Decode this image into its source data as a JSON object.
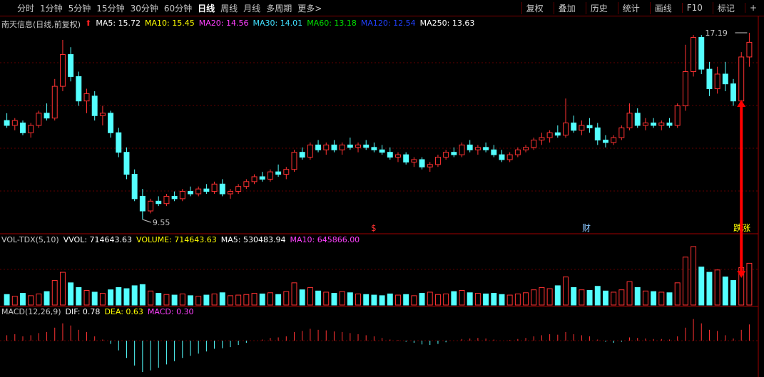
{
  "toolbar": {
    "periods": [
      "分时",
      "1分钟",
      "5分钟",
      "15分钟",
      "30分钟",
      "60分钟",
      "日线",
      "周线",
      "月线",
      "多周期",
      "更多>"
    ],
    "tools": [
      "复权",
      "叠加",
      "历史",
      "统计",
      "画线",
      "F10",
      "标记",
      "+"
    ]
  },
  "price_panel": {
    "title": "南天信息(日线,前复权)",
    "ma_labels": [
      "MA5: 15.72",
      "MA10: 15.45",
      "MA20: 14.56",
      "MA30: 14.01",
      "MA60: 13.18",
      "MA120: 12.54",
      "MA250: 13.63"
    ],
    "high_label": "17.19",
    "low_label": "9.55",
    "markers": [
      "$",
      "财",
      "跌涨"
    ],
    "ohlc": [
      [
        13.6,
        13.9,
        13.3,
        13.4
      ],
      [
        13.4,
        13.7,
        13.2,
        13.6
      ],
      [
        13.5,
        13.6,
        13.0,
        13.1
      ],
      [
        13.1,
        13.5,
        12.9,
        13.4
      ],
      [
        13.4,
        14.0,
        13.3,
        13.9
      ],
      [
        13.9,
        14.3,
        13.6,
        13.7
      ],
      [
        13.7,
        15.3,
        13.6,
        15.0
      ],
      [
        15.0,
        16.9,
        14.8,
        16.3
      ],
      [
        16.3,
        16.6,
        15.2,
        15.4
      ],
      [
        15.4,
        15.6,
        14.2,
        14.4
      ],
      [
        14.4,
        14.9,
        13.9,
        14.7
      ],
      [
        14.6,
        14.8,
        13.6,
        13.8
      ],
      [
        13.8,
        14.2,
        13.4,
        13.9
      ],
      [
        13.9,
        14.0,
        12.9,
        13.1
      ],
      [
        13.1,
        13.3,
        12.1,
        12.3
      ],
      [
        12.3,
        12.5,
        11.2,
        11.4
      ],
      [
        11.4,
        11.6,
        10.3,
        10.4
      ],
      [
        10.5,
        10.8,
        9.55,
        9.9
      ],
      [
        9.9,
        10.4,
        9.8,
        10.3
      ],
      [
        10.3,
        10.5,
        10.1,
        10.2
      ],
      [
        10.2,
        10.6,
        10.1,
        10.5
      ],
      [
        10.5,
        10.7,
        10.3,
        10.4
      ],
      [
        10.4,
        10.8,
        10.3,
        10.7
      ],
      [
        10.7,
        10.9,
        10.5,
        10.6
      ],
      [
        10.6,
        10.9,
        10.5,
        10.8
      ],
      [
        10.8,
        11.0,
        10.6,
        10.7
      ],
      [
        10.7,
        11.1,
        10.6,
        11.0
      ],
      [
        11.0,
        11.2,
        10.5,
        10.6
      ],
      [
        10.6,
        10.8,
        10.4,
        10.7
      ],
      [
        10.7,
        11.0,
        10.6,
        10.9
      ],
      [
        10.9,
        11.2,
        10.8,
        11.1
      ],
      [
        11.1,
        11.4,
        11.0,
        11.3
      ],
      [
        11.3,
        11.5,
        11.1,
        11.2
      ],
      [
        11.2,
        11.6,
        11.1,
        11.5
      ],
      [
        11.5,
        11.8,
        11.3,
        11.4
      ],
      [
        11.4,
        11.7,
        11.2,
        11.6
      ],
      [
        11.6,
        12.4,
        11.5,
        12.3
      ],
      [
        12.3,
        12.5,
        12.0,
        12.1
      ],
      [
        12.1,
        12.7,
        12.0,
        12.6
      ],
      [
        12.6,
        12.8,
        12.3,
        12.4
      ],
      [
        12.4,
        12.7,
        12.2,
        12.6
      ],
      [
        12.6,
        12.8,
        12.3,
        12.4
      ],
      [
        12.4,
        12.7,
        12.2,
        12.6
      ],
      [
        12.6,
        12.9,
        12.4,
        12.5
      ],
      [
        12.5,
        12.7,
        12.3,
        12.6
      ],
      [
        12.6,
        12.8,
        12.4,
        12.5
      ],
      [
        12.5,
        12.7,
        12.3,
        12.4
      ],
      [
        12.4,
        12.6,
        12.2,
        12.3
      ],
      [
        12.3,
        12.5,
        12.0,
        12.1
      ],
      [
        12.1,
        12.3,
        11.9,
        12.2
      ],
      [
        12.2,
        12.3,
        11.8,
        11.9
      ],
      [
        11.9,
        12.1,
        11.7,
        12.0
      ],
      [
        12.0,
        12.1,
        11.6,
        11.7
      ],
      [
        11.7,
        11.9,
        11.5,
        11.8
      ],
      [
        11.8,
        12.2,
        11.7,
        12.1
      ],
      [
        12.1,
        12.4,
        12.0,
        12.3
      ],
      [
        12.3,
        12.5,
        12.1,
        12.2
      ],
      [
        12.2,
        12.7,
        12.1,
        12.6
      ],
      [
        12.6,
        12.8,
        12.3,
        12.4
      ],
      [
        12.4,
        12.6,
        12.2,
        12.5
      ],
      [
        12.5,
        12.7,
        12.3,
        12.4
      ],
      [
        12.4,
        12.6,
        12.1,
        12.2
      ],
      [
        12.2,
        12.4,
        11.9,
        12.0
      ],
      [
        12.0,
        12.3,
        11.9,
        12.2
      ],
      [
        12.2,
        12.5,
        12.1,
        12.4
      ],
      [
        12.4,
        12.6,
        12.3,
        12.5
      ],
      [
        12.5,
        12.9,
        12.4,
        12.8
      ],
      [
        12.8,
        13.1,
        12.6,
        12.9
      ],
      [
        12.9,
        13.2,
        12.7,
        13.1
      ],
      [
        13.1,
        13.4,
        12.9,
        13.0
      ],
      [
        13.0,
        14.5,
        12.9,
        13.5
      ],
      [
        13.5,
        13.8,
        13.1,
        13.2
      ],
      [
        13.2,
        13.6,
        13.0,
        13.4
      ],
      [
        13.4,
        13.7,
        13.1,
        13.3
      ],
      [
        13.3,
        13.5,
        12.6,
        12.8
      ],
      [
        12.8,
        13.0,
        12.5,
        12.7
      ],
      [
        12.7,
        13.0,
        12.6,
        12.9
      ],
      [
        12.9,
        13.4,
        12.8,
        13.3
      ],
      [
        13.3,
        14.3,
        13.2,
        13.9
      ],
      [
        13.9,
        14.1,
        13.3,
        13.4
      ],
      [
        13.4,
        13.7,
        13.2,
        13.5
      ],
      [
        13.5,
        13.7,
        13.3,
        13.4
      ],
      [
        13.4,
        13.6,
        13.2,
        13.5
      ],
      [
        13.5,
        13.7,
        13.3,
        13.4
      ],
      [
        13.4,
        14.3,
        13.3,
        14.2
      ],
      [
        14.2,
        16.7,
        14.0,
        15.6
      ],
      [
        15.6,
        17.1,
        15.4,
        17.0
      ],
      [
        17.0,
        17.1,
        15.5,
        15.7
      ],
      [
        15.7,
        16.0,
        14.6,
        14.9
      ],
      [
        14.9,
        15.8,
        14.7,
        15.5
      ],
      [
        15.5,
        16.0,
        14.8,
        15.1
      ],
      [
        15.1,
        15.3,
        14.2,
        14.4
      ],
      [
        14.4,
        16.4,
        14.3,
        16.2
      ],
      [
        16.2,
        17.19,
        15.8,
        16.8
      ]
    ]
  },
  "volume_panel": {
    "title": "VOL-TDX(5,10)",
    "labels": [
      "VVOL: 714643.63",
      "VOLUME: 714643.63",
      "MA5: 530483.94",
      "MA10: 645866.00"
    ],
    "values": [
      180000,
      150000,
      200000,
      160000,
      190000,
      230000,
      420000,
      560000,
      380000,
      300000,
      250000,
      220000,
      200000,
      260000,
      300000,
      280000,
      330000,
      350000,
      240000,
      200000,
      180000,
      170000,
      190000,
      160000,
      150000,
      170000,
      190000,
      210000,
      160000,
      170000,
      180000,
      200000,
      190000,
      210000,
      180000,
      230000,
      380000,
      260000,
      300000,
      240000,
      220000,
      200000,
      230000,
      210000,
      190000,
      180000,
      170000,
      160000,
      190000,
      170000,
      180000,
      160000,
      200000,
      220000,
      180000,
      190000,
      230000,
      250000,
      210000,
      200000,
      190000,
      200000,
      180000,
      170000,
      190000,
      210000,
      260000,
      300000,
      280000,
      330000,
      480000,
      300000,
      260000,
      250000,
      320000,
      240000,
      220000,
      260000,
      400000,
      300000,
      240000,
      230000,
      220000,
      210000,
      380000,
      820000,
      1000000,
      650000,
      560000,
      600000,
      480000,
      420000,
      640000,
      714643.63
    ]
  },
  "macd_panel": {
    "title": "MACD(12,26,9)",
    "labels": [
      "DIF: 0.78",
      "DEA: 0.63",
      "MACD: 0.30"
    ],
    "values": [
      0.1,
      0.12,
      0.08,
      0.1,
      0.14,
      0.16,
      0.24,
      0.32,
      0.28,
      0.2,
      0.16,
      0.08,
      0.02,
      -0.06,
      -0.18,
      -0.32,
      -0.46,
      -0.58,
      -0.55,
      -0.5,
      -0.44,
      -0.38,
      -0.32,
      -0.28,
      -0.24,
      -0.2,
      -0.15,
      -0.14,
      -0.12,
      -0.08,
      -0.04,
      0,
      0.02,
      0.05,
      0.06,
      0.08,
      0.16,
      0.18,
      0.22,
      0.2,
      0.19,
      0.17,
      0.16,
      0.14,
      0.12,
      0.1,
      0.08,
      0.05,
      0.02,
      0.01,
      -0.02,
      -0.04,
      -0.07,
      -0.08,
      -0.06,
      -0.03,
      0,
      0.03,
      0.04,
      0.05,
      0.04,
      0.02,
      0,
      0.01,
      0.03,
      0.05,
      0.08,
      0.1,
      0.12,
      0.11,
      0.16,
      0.12,
      0.1,
      0.08,
      0.02,
      -0.02,
      -0.04,
      -0.02,
      0.06,
      0.05,
      0.04,
      0.03,
      0.03,
      0.02,
      0.08,
      0.24,
      0.4,
      0.32,
      0.2,
      0.18,
      0.1,
      0.04,
      0.2,
      0.3
    ]
  }
}
